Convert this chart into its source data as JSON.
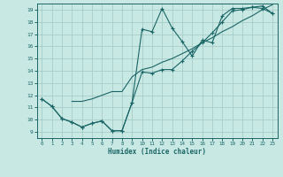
{
  "xlabel": "Humidex (Indice chaleur)",
  "xlim": [
    -0.5,
    23.5
  ],
  "ylim": [
    8.5,
    19.5
  ],
  "xticks": [
    0,
    1,
    2,
    3,
    4,
    5,
    6,
    7,
    8,
    9,
    10,
    11,
    12,
    13,
    14,
    15,
    16,
    17,
    18,
    19,
    20,
    21,
    22,
    23
  ],
  "yticks": [
    9,
    10,
    11,
    12,
    13,
    14,
    15,
    16,
    17,
    18,
    19
  ],
  "bg_color": "#c8e8e4",
  "grid_color": "#a0c8c4",
  "line_color": "#1a6666",
  "line1_x": [
    0,
    1,
    2,
    3,
    4,
    5,
    6,
    7,
    8,
    9,
    10,
    11,
    12,
    13,
    14,
    15,
    16,
    17,
    18,
    19,
    20,
    21,
    22,
    23
  ],
  "line1_y": [
    11.7,
    11.1,
    10.1,
    9.8,
    9.4,
    9.7,
    9.9,
    9.1,
    9.1,
    11.4,
    17.4,
    17.2,
    19.1,
    17.5,
    16.4,
    15.2,
    16.5,
    16.3,
    18.5,
    19.1,
    19.1,
    19.2,
    19.1,
    18.7
  ],
  "line2_x": [
    0,
    1,
    2,
    3,
    4,
    5,
    6,
    7,
    8,
    9,
    10,
    11,
    12,
    13,
    14,
    15,
    16,
    17,
    18,
    19,
    20,
    21,
    22,
    23
  ],
  "line2_y": [
    11.7,
    11.1,
    10.1,
    9.8,
    9.4,
    9.7,
    9.9,
    9.1,
    9.1,
    11.4,
    13.9,
    13.8,
    14.1,
    14.1,
    14.8,
    15.6,
    16.3,
    17.1,
    18.0,
    18.9,
    19.0,
    19.2,
    19.3,
    18.7
  ],
  "line3_x": [
    3,
    4,
    5,
    6,
    7,
    8,
    9,
    10,
    11,
    12,
    13,
    14,
    15,
    16,
    17,
    18,
    19,
    20,
    21,
    22,
    23
  ],
  "line3_y": [
    11.5,
    11.5,
    11.7,
    12.0,
    12.3,
    12.3,
    13.5,
    14.1,
    14.3,
    14.7,
    15.0,
    15.4,
    15.8,
    16.3,
    16.7,
    17.2,
    17.6,
    18.1,
    18.5,
    19.0,
    19.4
  ]
}
